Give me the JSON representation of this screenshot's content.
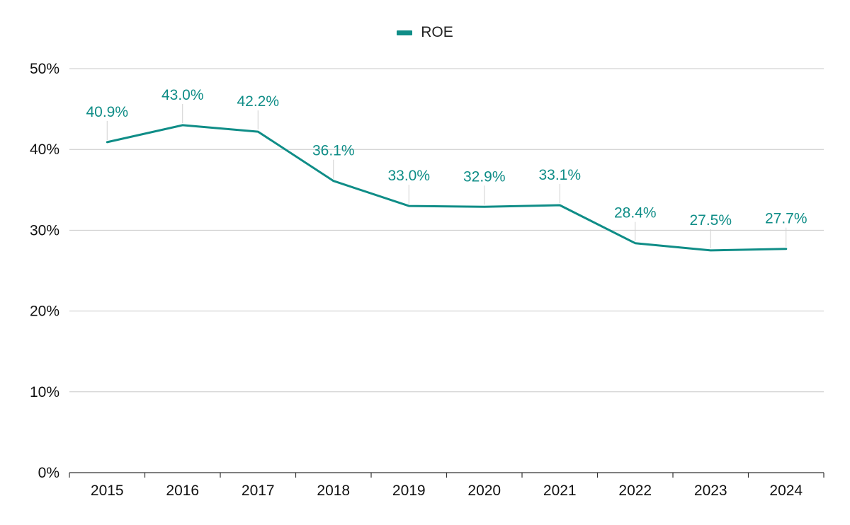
{
  "chart_data": {
    "type": "line",
    "title": "",
    "xlabel": "",
    "ylabel": "",
    "categories": [
      "2015",
      "2016",
      "2017",
      "2018",
      "2019",
      "2020",
      "2021",
      "2022",
      "2023",
      "2024"
    ],
    "series": [
      {
        "name": "ROE",
        "values": [
          40.9,
          43.0,
          42.2,
          36.1,
          33.0,
          32.9,
          33.1,
          28.4,
          27.5,
          27.7
        ],
        "labels": [
          "40.9%",
          "43.0%",
          "42.2%",
          "36.1%",
          "33.0%",
          "32.9%",
          "33.1%",
          "28.4%",
          "27.5%",
          "27.7%"
        ],
        "color": "#0f8d87"
      }
    ],
    "y_ticks": [
      "0%",
      "10%",
      "20%",
      "30%",
      "40%",
      "50%"
    ],
    "ylim": [
      0,
      50
    ],
    "grid": true,
    "legend_position": "top-center"
  },
  "legend": {
    "label": "ROE",
    "color": "#0f8d87"
  },
  "colors": {
    "series": "#0f8d87",
    "grid": "#c8c8c8",
    "axis": "#333333",
    "leader": "#d0d0d0"
  }
}
